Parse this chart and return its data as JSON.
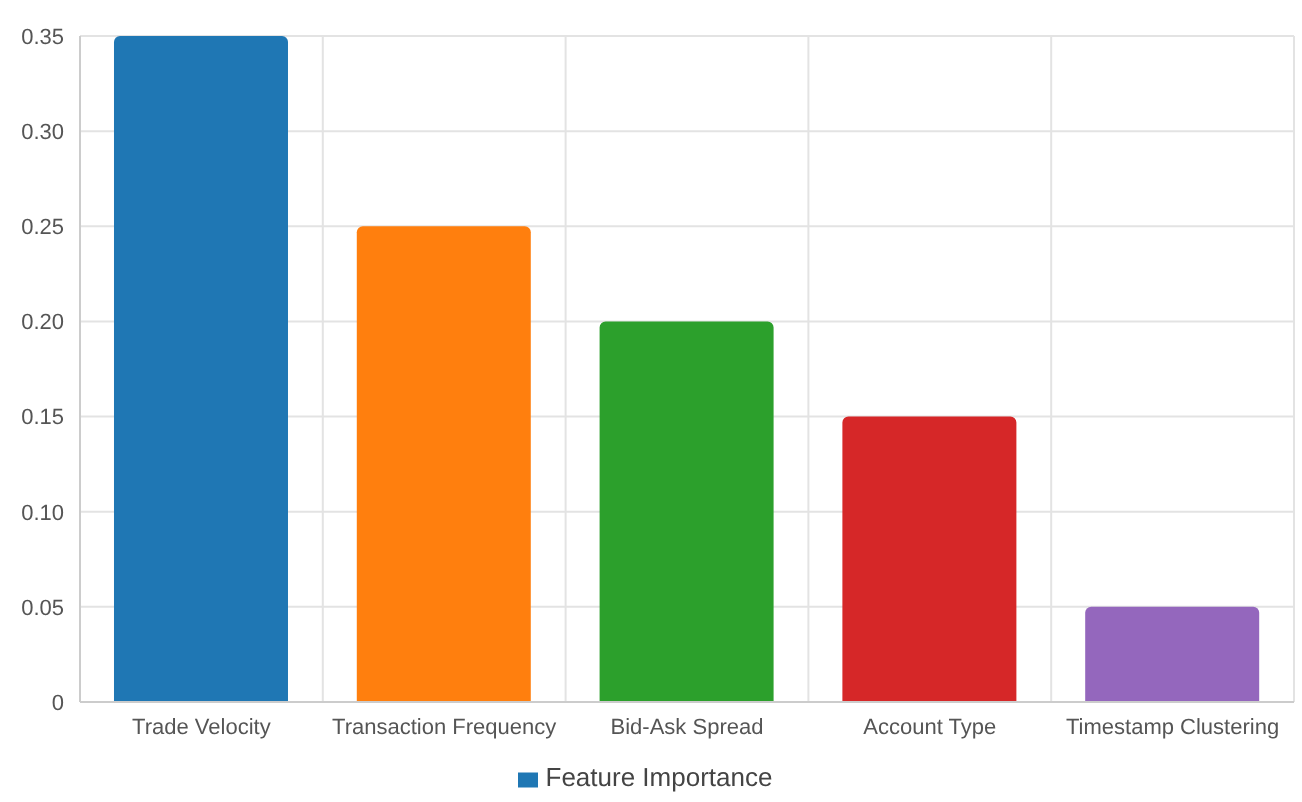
{
  "chart_data": {
    "type": "bar",
    "categories": [
      "Trade Velocity",
      "Transaction Frequency",
      "Bid-Ask Spread",
      "Account Type",
      "Timestamp Clustering"
    ],
    "series": [
      {
        "name": "Feature Importance",
        "color": "#1f77b4",
        "colors": [
          "#1f77b4",
          "#ff7f0e",
          "#2ca02c",
          "#d62728",
          "#9467bd"
        ],
        "values": [
          0.35,
          0.25,
          0.2,
          0.15,
          0.05
        ]
      }
    ],
    "ylim": [
      0,
      0.35
    ],
    "yticks": [
      0,
      {
        "value": 0.05,
        "label": "0.05"
      },
      {
        "value": 0.1,
        "label": "0.10"
      },
      {
        "value": 0.15,
        "label": "0.15"
      },
      {
        "value": 0.2,
        "label": "0.20"
      },
      {
        "value": 0.25,
        "label": "0.25"
      },
      {
        "value": 0.3,
        "label": "0.30"
      },
      {
        "value": 0.35,
        "label": "0.35"
      }
    ],
    "grid": true,
    "legend": "bottom"
  }
}
